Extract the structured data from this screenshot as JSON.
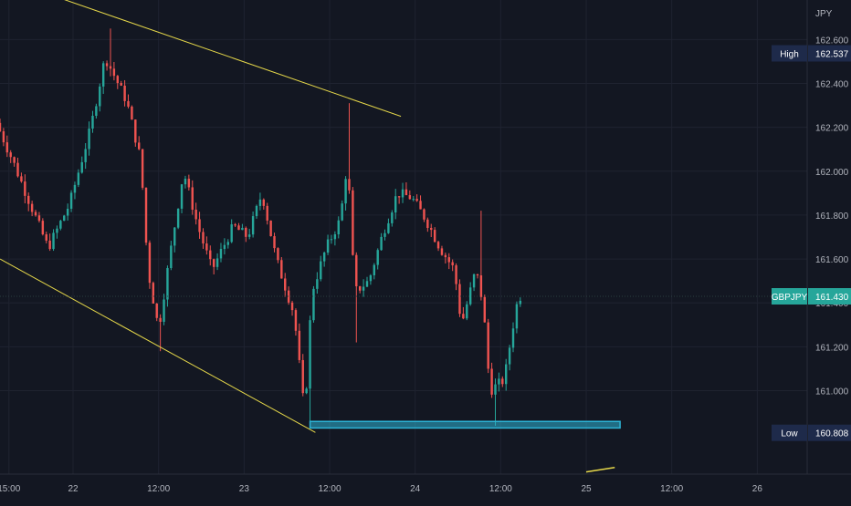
{
  "chart_data": {
    "type": "candlestick",
    "symbol": "GBPJPY",
    "currency": "JPY",
    "y_range": [
      160.62,
      162.78
    ],
    "y_ticks": [
      161.0,
      161.2,
      161.4,
      161.6,
      161.8,
      162.0,
      162.2,
      162.4,
      162.6
    ],
    "y_tick_labels": [
      "161.000",
      "161.200",
      "161.400",
      "161.600",
      "161.800",
      "162.000",
      "162.200",
      "162.400",
      "162.600"
    ],
    "x_axis_start": "2024-05-21T13:45",
    "x_axis_end": "2024-05-26T07:00",
    "x_ticks": [
      {
        "time": "2024-05-21T15:00",
        "label": "15:00"
      },
      {
        "time": "2024-05-22T00:00",
        "label": "22"
      },
      {
        "time": "2024-05-22T12:00",
        "label": "12:00"
      },
      {
        "time": "2024-05-23T00:00",
        "label": "23"
      },
      {
        "time": "2024-05-23T12:00",
        "label": "12:00"
      },
      {
        "time": "2024-05-24T00:00",
        "label": "24"
      },
      {
        "time": "2024-05-24T12:00",
        "label": "12:00"
      },
      {
        "time": "2024-05-25T00:00",
        "label": "25"
      },
      {
        "time": "2024-05-25T12:00",
        "label": "12:00"
      },
      {
        "time": "2024-05-26T00:00",
        "label": "26"
      }
    ],
    "grid": true,
    "price_series": {
      "interval_minutes": 30,
      "start_time": "2024-05-21T13:45",
      "up_color": "#26a69a",
      "down_color": "#ef5350",
      "path": [
        [
          "2024-05-21T13:45",
          162.22
        ],
        [
          "2024-05-21T16:00",
          162.05
        ],
        [
          "2024-05-21T18:30",
          161.85
        ],
        [
          "2024-05-21T21:00",
          161.65
        ],
        [
          "2024-05-22T00:00",
          161.85
        ],
        [
          "2024-05-22T03:00",
          162.2
        ],
        [
          "2024-05-22T05:00",
          162.52
        ],
        [
          "2024-05-22T08:00",
          162.32
        ],
        [
          "2024-05-22T10:00",
          162.05
        ],
        [
          "2024-05-22T11:00",
          161.55
        ],
        [
          "2024-05-22T12:30",
          161.28
        ],
        [
          "2024-05-22T14:00",
          161.6
        ],
        [
          "2024-05-22T16:00",
          162.0
        ],
        [
          "2024-05-22T18:00",
          161.75
        ],
        [
          "2024-05-22T20:00",
          161.55
        ],
        [
          "2024-05-22T23:00",
          161.75
        ],
        [
          "2024-05-23T01:00",
          161.7
        ],
        [
          "2024-05-23T03:00",
          161.9
        ],
        [
          "2024-05-23T05:00",
          161.6
        ],
        [
          "2024-05-23T07:30",
          161.35
        ],
        [
          "2024-05-23T09:00",
          160.89
        ],
        [
          "2024-05-23T10:00",
          161.45
        ],
        [
          "2024-05-23T12:00",
          161.65
        ],
        [
          "2024-05-23T14:00",
          161.78
        ],
        [
          "2024-05-23T15:00",
          162.05
        ],
        [
          "2024-05-23T16:00",
          161.45
        ],
        [
          "2024-05-23T18:00",
          161.5
        ],
        [
          "2024-05-23T20:00",
          161.72
        ],
        [
          "2024-05-23T22:00",
          161.9
        ],
        [
          "2024-05-24T00:00",
          161.88
        ],
        [
          "2024-05-24T02:00",
          161.78
        ],
        [
          "2024-05-24T04:00",
          161.65
        ],
        [
          "2024-05-24T06:00",
          161.55
        ],
        [
          "2024-05-24T07:00",
          161.3
        ],
        [
          "2024-05-24T09:00",
          161.55
        ],
        [
          "2024-05-24T10:00",
          161.4
        ],
        [
          "2024-05-24T11:00",
          161.0
        ],
        [
          "2024-05-24T13:00",
          161.05
        ],
        [
          "2024-05-24T14:30",
          161.35
        ],
        [
          "2024-05-24T15:00",
          161.43
        ]
      ],
      "spikes": [
        {
          "time": "2024-05-22T05:30",
          "high": 162.65
        },
        {
          "time": "2024-05-22T12:30",
          "low": 161.18
        },
        {
          "time": "2024-05-23T09:30",
          "low": 160.83
        },
        {
          "time": "2024-05-23T15:00",
          "high": 162.31
        },
        {
          "time": "2024-05-23T16:00",
          "low": 161.22
        },
        {
          "time": "2024-05-24T11:30",
          "low": 160.84
        },
        {
          "time": "2024-05-24T09:30",
          "high": 161.82
        }
      ]
    },
    "trendlines": [
      {
        "name": "upper-channel-line",
        "color": "#e6d84a",
        "points": [
          [
            "2024-05-21T18:30",
            162.83
          ],
          [
            "2024-05-23T22:00",
            162.25
          ]
        ]
      },
      {
        "name": "lower-channel-line",
        "color": "#e6d84a",
        "points": [
          [
            "2024-05-21T13:45",
            161.6
          ],
          [
            "2024-05-23T10:00",
            160.81
          ]
        ]
      },
      {
        "name": "small-line",
        "color": "#e6d84a",
        "points": [
          [
            "2024-05-25T00:00",
            160.63
          ],
          [
            "2024-05-25T04:00",
            160.65
          ]
        ]
      }
    ],
    "support_zone": {
      "color": "#2db4d6",
      "start": "2024-05-23T09:15",
      "end": "2024-05-25T04:45",
      "top": 160.86,
      "bottom": 160.83
    },
    "labels": {
      "high": {
        "title": "High",
        "value": "162.537",
        "price": 162.537,
        "color": "#1e2a4a"
      },
      "current": {
        "title": "GBPJPY",
        "value": "161.430",
        "price": 161.43,
        "color": "#26a69a"
      },
      "low": {
        "title": "Low",
        "value": "160.808",
        "price": 160.808,
        "color": "#1e2a4a"
      }
    }
  }
}
